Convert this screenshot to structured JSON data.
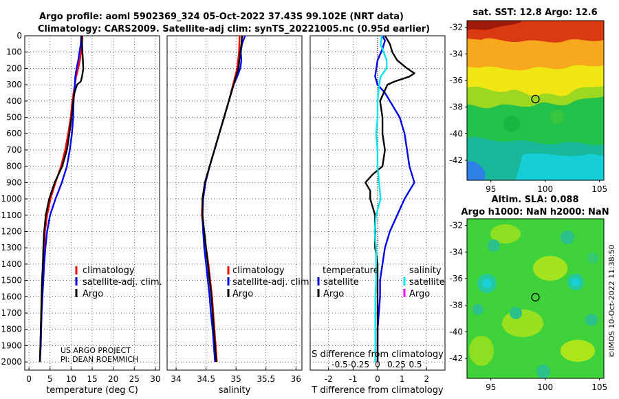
{
  "title": {
    "line1": "Argo profile: aoml 5902369_324 05-Oct-2022 37.43S 99.102E (NRT data)",
    "line2": "Climatology: CARS2009. Satellite-adj clim: synTS_20221005.nc (0.95d earlier)"
  },
  "depth_axis": {
    "ticks": [
      0,
      100,
      200,
      300,
      400,
      500,
      600,
      700,
      800,
      900,
      1000,
      1100,
      1200,
      1300,
      1400,
      1500,
      1600,
      1700,
      1800,
      1900,
      2000
    ],
    "range": [
      0,
      2050
    ]
  },
  "colors": {
    "climatology": "#ff0000",
    "satellite": "#0000ee",
    "argo": "#000000",
    "satellite_salinity": "#00e5ee",
    "argo_salinity": "#ff00ff"
  },
  "chart_data": [
    {
      "type": "line",
      "id": "temperature",
      "xlabel": "temperature (deg C)",
      "xlim": [
        -1,
        31
      ],
      "xticks": [
        0,
        5,
        10,
        15,
        20,
        25,
        30
      ],
      "ylim": [
        0,
        2050
      ],
      "legend": [
        "climatology",
        "satellite-adj. clim.",
        "Argo"
      ],
      "credit": [
        "US ARGO PROJECT",
        "PI: DEAN ROEMMICH"
      ],
      "series": [
        {
          "name": "climatology",
          "color": "#ff0000",
          "depth": [
            0,
            50,
            100,
            150,
            200,
            250,
            300,
            350,
            400,
            500,
            600,
            700,
            800,
            900,
            1000,
            1100,
            1200,
            1300,
            1400,
            1500,
            1600,
            1700,
            1800,
            1900,
            2000
          ],
          "values": [
            12.7,
            12.6,
            12.4,
            12.1,
            11.7,
            11.2,
            10.9,
            10.6,
            10.3,
            9.9,
            9.3,
            8.6,
            7.6,
            6.3,
            5.1,
            4.3,
            3.8,
            3.6,
            3.4,
            3.2,
            3.0,
            2.9,
            2.8,
            2.7,
            2.6
          ]
        },
        {
          "name": "satellite-adj. clim.",
          "color": "#0000ee",
          "depth": [
            0,
            50,
            100,
            150,
            200,
            250,
            300,
            350,
            400,
            500,
            600,
            700,
            800,
            900,
            1000,
            1100,
            1200,
            1300,
            1400,
            1500,
            1600,
            1700,
            1800,
            1900,
            2000
          ],
          "values": [
            12.4,
            12.3,
            12.0,
            11.7,
            11.3,
            11.0,
            10.9,
            10.7,
            10.6,
            10.5,
            10.2,
            9.7,
            9.0,
            7.8,
            6.3,
            5.0,
            4.3,
            3.9,
            3.6,
            3.4,
            3.2,
            3.0,
            2.9,
            2.8,
            2.6
          ]
        },
        {
          "name": "Argo",
          "color": "#000000",
          "depth": [
            0,
            50,
            100,
            150,
            200,
            250,
            280,
            300,
            350,
            400,
            500,
            600,
            700,
            800,
            900,
            1000,
            1100,
            1200,
            1300,
            1400,
            1500,
            1600,
            1700,
            1800,
            1900,
            2000
          ],
          "values": [
            12.5,
            12.6,
            12.7,
            12.8,
            12.9,
            12.6,
            12.3,
            11.4,
            10.8,
            10.5,
            10.1,
            9.6,
            9.0,
            7.9,
            6.1,
            4.8,
            4.0,
            3.6,
            3.4,
            3.3,
            3.1,
            3.0,
            2.9,
            2.8,
            2.7,
            2.6
          ]
        }
      ]
    },
    {
      "type": "line",
      "id": "salinity",
      "xlabel": "salinity",
      "xlim": [
        33.85,
        36.1
      ],
      "xticks": [
        34,
        34.5,
        35,
        35.5,
        36
      ],
      "ylim": [
        0,
        2050
      ],
      "legend": [
        "climatology",
        "satellite-adj. clim.",
        "Argo"
      ],
      "series": [
        {
          "name": "climatology",
          "color": "#ff0000",
          "depth": [
            0,
            100,
            200,
            300,
            400,
            500,
            600,
            700,
            800,
            900,
            1000,
            1100,
            1200,
            1300,
            1400,
            1500,
            1600,
            1700,
            1800,
            1900,
            2000
          ],
          "values": [
            35.06,
            35.05,
            35.02,
            34.95,
            34.88,
            34.8,
            34.72,
            34.64,
            34.56,
            34.48,
            34.44,
            34.43,
            34.46,
            34.5,
            34.54,
            34.57,
            34.6,
            34.62,
            34.64,
            34.66,
            34.68
          ]
        },
        {
          "name": "satellite-adj. clim.",
          "color": "#0000ee",
          "depth": [
            0,
            50,
            100,
            150,
            200,
            250,
            300,
            400,
            500,
            600,
            700,
            800,
            900,
            1000,
            1100,
            1200,
            1300,
            1400,
            1500,
            1600,
            1700,
            1800,
            1900,
            2000
          ],
          "values": [
            35.15,
            35.1,
            35.08,
            35.09,
            35.07,
            35.02,
            34.96,
            34.88,
            34.8,
            34.72,
            34.64,
            34.56,
            34.49,
            34.45,
            34.44,
            34.45,
            34.47,
            34.5,
            34.53,
            34.56,
            34.58,
            34.61,
            34.63,
            34.65
          ]
        },
        {
          "name": "Argo",
          "color": "#000000",
          "depth": [
            0,
            50,
            100,
            200,
            300,
            400,
            500,
            600,
            700,
            800,
            900,
            1000,
            1100,
            1200,
            1300,
            1400,
            1500,
            1600,
            1700,
            1800,
            1900,
            2000
          ],
          "values": [
            35.1,
            35.09,
            35.07,
            35.04,
            34.96,
            34.88,
            34.8,
            34.72,
            34.64,
            34.56,
            34.48,
            34.44,
            34.44,
            34.47,
            34.5,
            34.53,
            34.56,
            34.59,
            34.61,
            34.63,
            34.65,
            34.67
          ]
        }
      ]
    },
    {
      "type": "line",
      "id": "difference",
      "xlabel": "T difference from climatology",
      "xlabel_top": "S difference from climatology",
      "xlim": [
        -2.75,
        2.75
      ],
      "xticks": [
        -2,
        -1,
        0,
        1,
        2
      ],
      "sticks": [
        -0.5,
        -0.25,
        0,
        0.25,
        0.5
      ],
      "ylim": [
        0,
        2050
      ],
      "legend_temperature_header": "temperature",
      "legend_salinity_header": "salinity",
      "legend_temperature": [
        "satellite",
        "Argo"
      ],
      "legend_salinity": [
        "satellite",
        "Argo"
      ],
      "series": [
        {
          "name": "T satellite",
          "color": "#0000ee",
          "depth": [
            0,
            30,
            80,
            150,
            250,
            300,
            350,
            400,
            500,
            600,
            700,
            800,
            900,
            950,
            1000,
            1100,
            1200,
            1300,
            1400,
            1500,
            1600,
            1700,
            1800,
            1900,
            2000
          ],
          "values": [
            0.2,
            0.3,
            0.2,
            0.0,
            -0.1,
            0.0,
            0.3,
            0.5,
            0.9,
            1.1,
            1.2,
            1.3,
            1.5,
            1.3,
            1.1,
            0.8,
            0.5,
            0.3,
            0.2,
            0.1,
            0.1,
            0.05,
            0.0,
            0.0,
            0.0
          ]
        },
        {
          "name": "T Argo",
          "color": "#000000",
          "depth": [
            0,
            50,
            100,
            150,
            200,
            230,
            250,
            280,
            300,
            400,
            500,
            600,
            700,
            800,
            850,
            900,
            950,
            1000,
            1100,
            1200,
            1300,
            1400,
            1500,
            1600,
            1700,
            1800,
            1900,
            2000
          ],
          "values": [
            0.3,
            0.5,
            0.6,
            0.8,
            1.2,
            1.5,
            1.3,
            0.7,
            0.4,
            0.1,
            0.2,
            0.2,
            0.3,
            0.2,
            -0.2,
            -0.5,
            -0.3,
            -0.3,
            -0.1,
            -0.1,
            -0.1,
            0.0,
            0.0,
            0.0,
            0.0,
            0.0,
            0.0,
            0.0
          ]
        },
        {
          "name": "S satellite",
          "color": "#00e5ee",
          "depth": [
            0,
            50,
            100,
            150,
            200,
            250,
            300,
            400,
            500,
            600,
            700,
            800,
            900,
            1000,
            1100,
            1200,
            1300,
            1400,
            1500,
            1600,
            1700,
            1800,
            1900,
            2000
          ],
          "values": [
            0.06,
            0.04,
            0.08,
            0.12,
            0.12,
            0.04,
            0.02,
            0.0,
            0.0,
            -0.02,
            0.0,
            0.0,
            0.02,
            0.04,
            -0.02,
            -0.04,
            -0.02,
            -0.02,
            -0.02,
            -0.03,
            -0.03,
            -0.03,
            -0.03,
            -0.03
          ]
        }
      ]
    }
  ],
  "maps": {
    "sst": {
      "title": "sat. SST: 12.8 Argo: 12.6",
      "yticks": [
        -32,
        -34,
        -36,
        -38,
        -40,
        -42
      ],
      "xticks": [
        95,
        100,
        105
      ],
      "ylim": [
        -43.5,
        -31.5
      ],
      "xlim": [
        92.8,
        105.4
      ],
      "marker": {
        "lon": 99.1,
        "lat": -37.4
      }
    },
    "sla": {
      "title1": "Altim. SLA: 0.088",
      "title2": "Argo h1000: NaN h2000: NaN",
      "yticks": [
        -32,
        -34,
        -36,
        -38,
        -40,
        -42
      ],
      "xticks": [
        95,
        100,
        105
      ],
      "ylim": [
        -43.5,
        -31.5
      ],
      "xlim": [
        92.8,
        105.4
      ],
      "marker": {
        "lon": 99.1,
        "lat": -37.4
      }
    }
  },
  "stamp": "©IMOS 10-Oct-2022 11:38:50"
}
